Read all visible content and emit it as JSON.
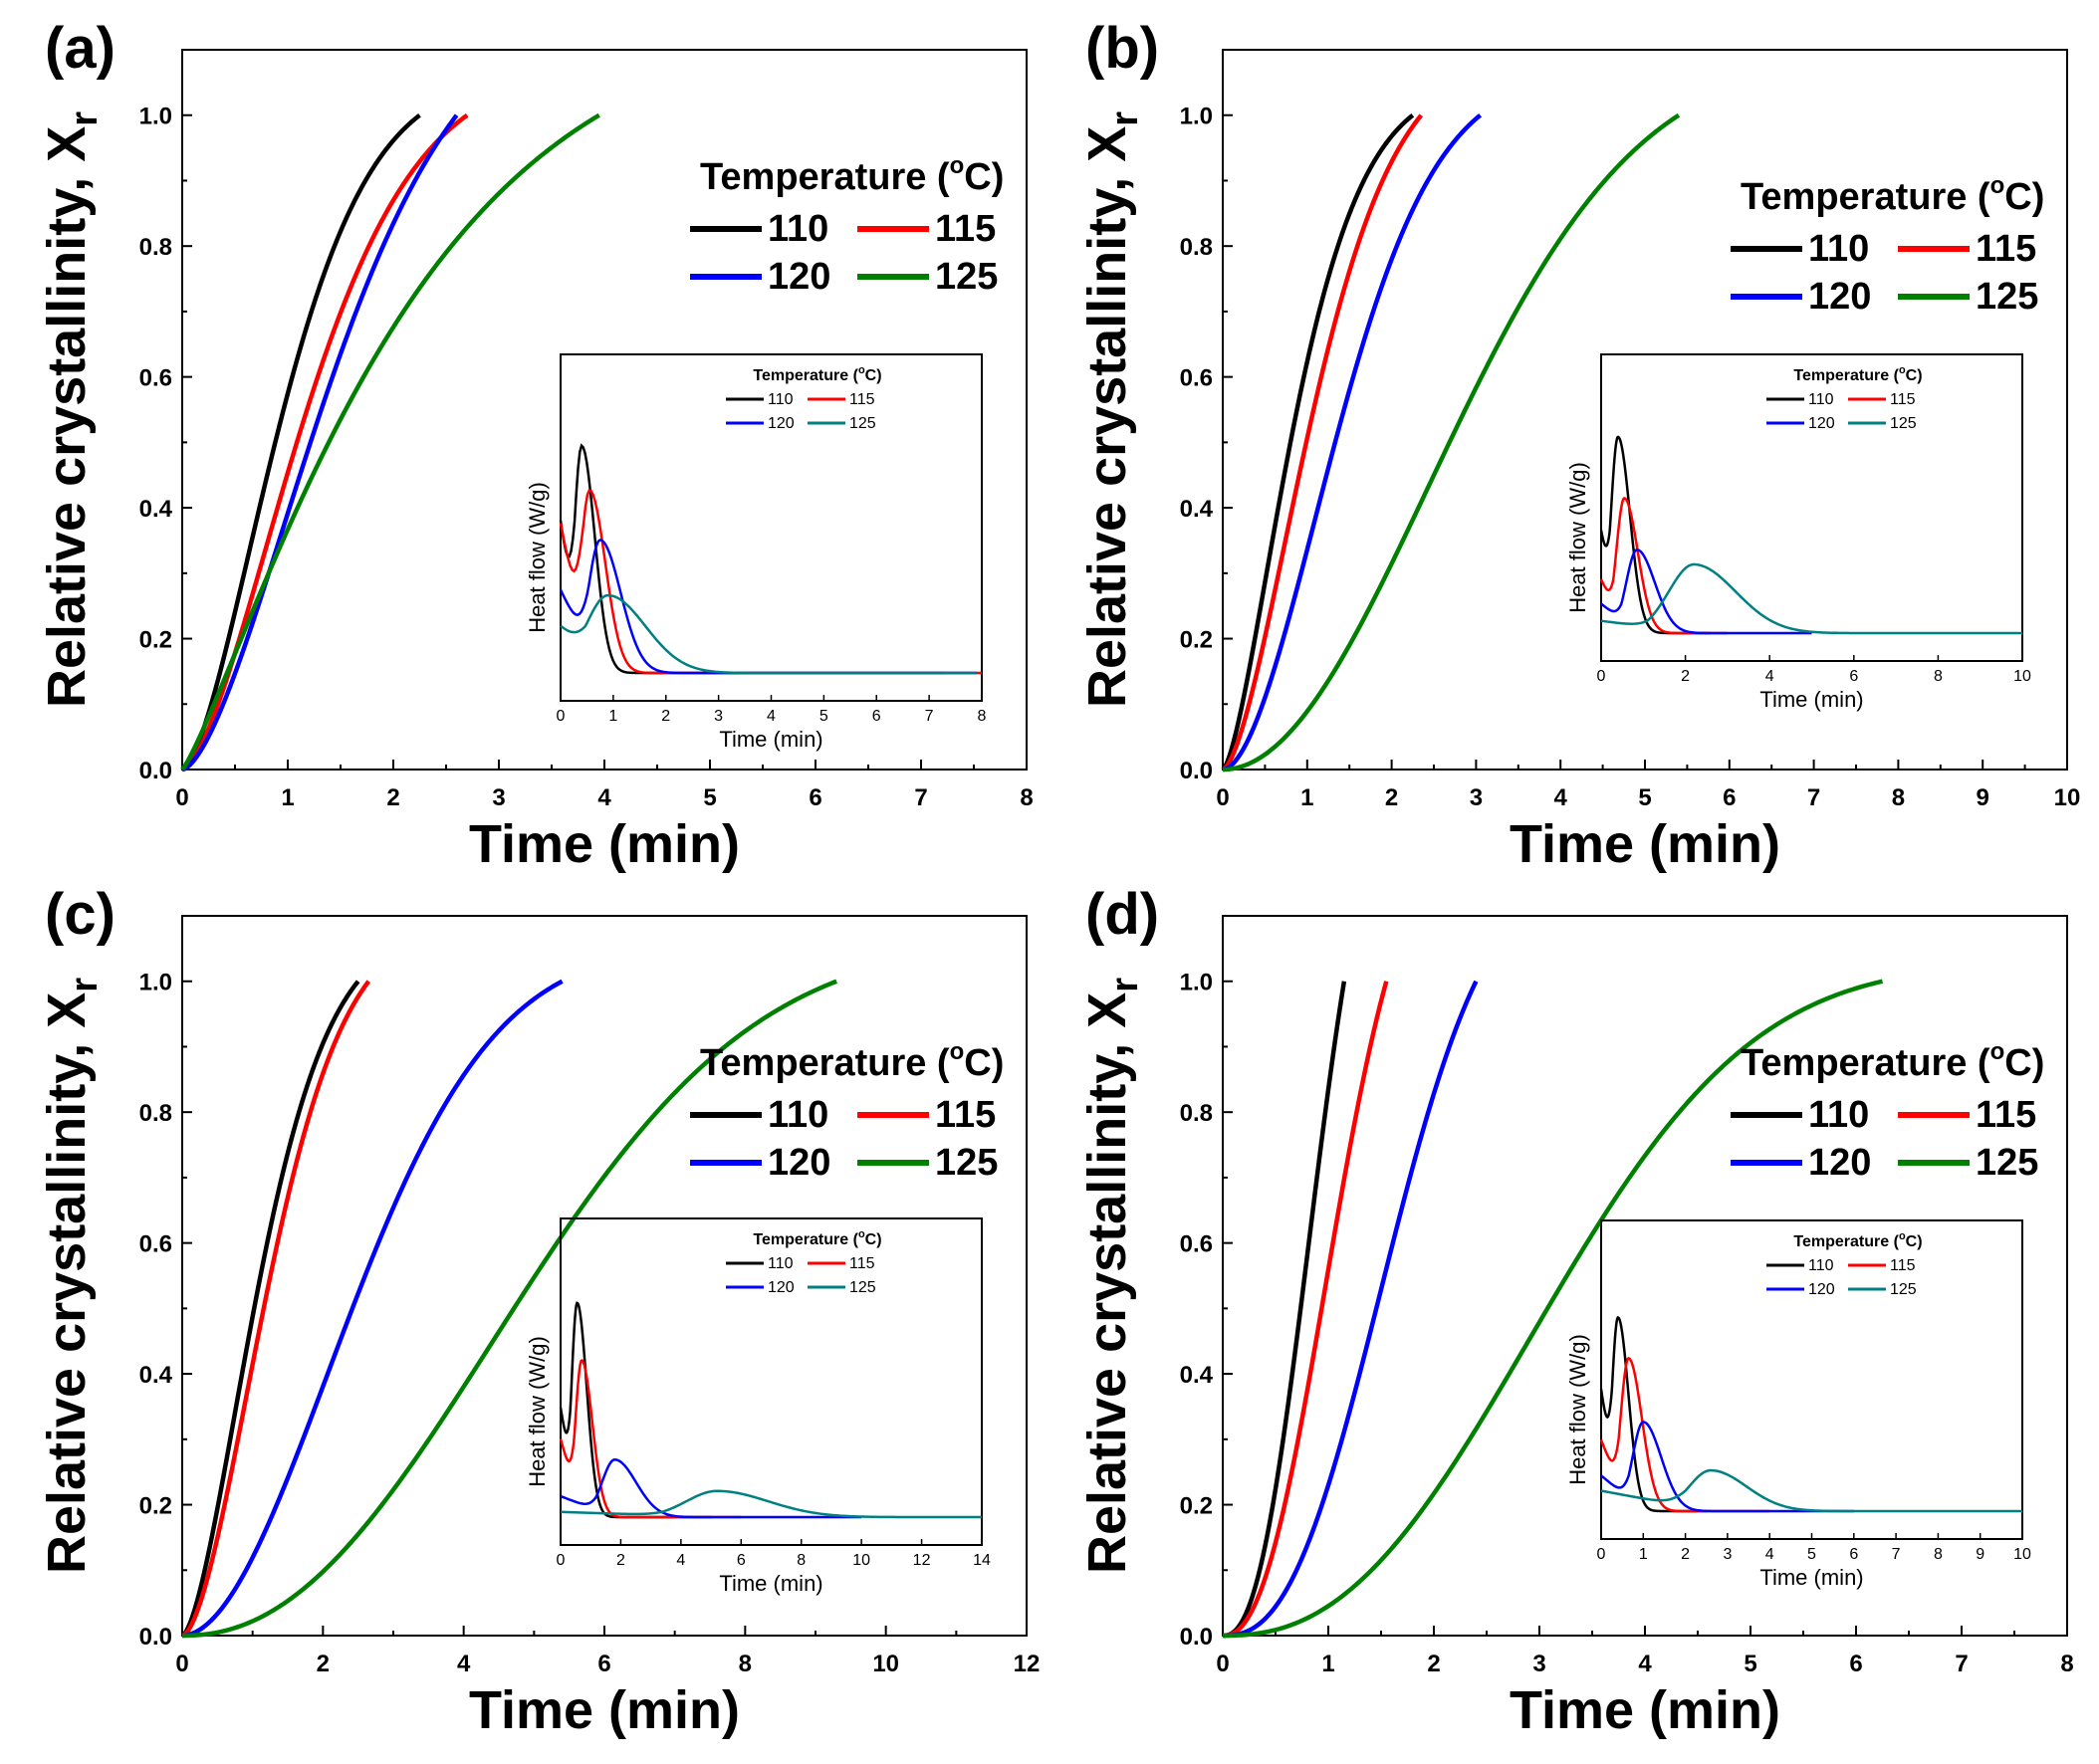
{
  "chart_data": [
    {
      "panel": "(a)",
      "type": "line",
      "xlabel": "Time (min)",
      "ylabel": "Relative crystallinity, X",
      "ylabel_sub": "r",
      "xlim": [
        0,
        8
      ],
      "ylim": [
        0,
        1.1
      ],
      "xticks": [
        "0",
        "1",
        "2",
        "3",
        "4",
        "5",
        "6",
        "7",
        "8"
      ],
      "yticks": [
        "0.0",
        "0.2",
        "0.4",
        "0.6",
        "0.8",
        "1.0"
      ],
      "legend": {
        "title": "Temperature (",
        "title_sup": "o",
        "title_unit": "C)",
        "entries": [
          "110",
          "115",
          "120",
          "125"
        ]
      },
      "series": [
        {
          "name": "110",
          "color": "#000000",
          "avrami": {
            "k": 0.78,
            "n": 1.6,
            "tmax": 2.25
          }
        },
        {
          "name": "115",
          "color": "#ff0000",
          "avrami": {
            "k": 0.55,
            "n": 1.6,
            "tmax": 2.7
          }
        },
        {
          "name": "120",
          "color": "#0000ff",
          "avrami": {
            "k": 0.4,
            "n": 1.6,
            "tmax": 2.6
          }
        },
        {
          "name": "125",
          "color": "#008000",
          "avrami": {
            "k": 0.38,
            "n": 1.2,
            "tmax": 3.95
          }
        }
      ],
      "inset": {
        "xlabel": "Time (min)",
        "ylabel": "Heat flow (W/g)",
        "xlim": [
          0,
          8
        ],
        "xticks": [
          "0",
          "1",
          "2",
          "3",
          "4",
          "5",
          "6",
          "7",
          "8"
        ],
        "legend": {
          "title": "Temperature (",
          "title_sup": "o",
          "title_unit": "C)",
          "entries": [
            "110",
            "115",
            "120",
            "125"
          ]
        },
        "series": [
          {
            "name": "110",
            "color": "#000000",
            "peak": {
              "t": 0.4,
              "h": 0.82,
              "w": 0.35,
              "base": 0.0,
              "start": 0.55,
              "tmax": 7.3
            }
          },
          {
            "name": "115",
            "color": "#ff0000",
            "peak": {
              "t": 0.55,
              "h": 0.66,
              "w": 0.42,
              "base": 0.0,
              "start": 0.54,
              "tmax": 8.0
            }
          },
          {
            "name": "120",
            "color": "#0000ff",
            "peak": {
              "t": 0.75,
              "h": 0.48,
              "w": 0.55,
              "base": 0.0,
              "start": 0.3,
              "tmax": 7.9
            }
          },
          {
            "name": "125",
            "color": "#008080",
            "peak": {
              "t": 0.9,
              "h": 0.28,
              "w": 1.0,
              "base": 0.0,
              "start": 0.17,
              "tmax": 7.9
            }
          }
        ]
      }
    },
    {
      "panel": "(b)",
      "type": "line",
      "xlabel": "Time (min)",
      "ylabel": "Relative crystallinity, X",
      "ylabel_sub": "r",
      "xlim": [
        0,
        10
      ],
      "ylim": [
        0,
        1.1
      ],
      "xticks": [
        "0",
        "1",
        "2",
        "3",
        "4",
        "5",
        "6",
        "7",
        "8",
        "9",
        "10"
      ],
      "yticks": [
        "0.0",
        "0.2",
        "0.4",
        "0.6",
        "0.8",
        "1.0"
      ],
      "legend": {
        "title": "Temperature (",
        "title_sup": "o",
        "title_unit": "C)",
        "entries": [
          "110",
          "115",
          "120",
          "125"
        ]
      },
      "series": [
        {
          "name": "110",
          "color": "#000000",
          "avrami": {
            "k": 0.9,
            "n": 1.5,
            "tmax": 2.25
          }
        },
        {
          "name": "115",
          "color": "#ff0000",
          "avrami": {
            "k": 0.62,
            "n": 1.6,
            "tmax": 2.35
          }
        },
        {
          "name": "120",
          "color": "#0000ff",
          "avrami": {
            "k": 0.38,
            "n": 1.8,
            "tmax": 3.05
          }
        },
        {
          "name": "125",
          "color": "#008000",
          "avrami": {
            "k": 0.085,
            "n": 2.0,
            "tmax": 5.4
          }
        }
      ],
      "inset": {
        "xlabel": "Time (min)",
        "ylabel": "Heat flow (W/g)",
        "xlim": [
          0,
          10
        ],
        "xticks": [
          "0",
          "2",
          "4",
          "6",
          "8",
          "10"
        ],
        "legend": {
          "title": "Temperature (",
          "title_sup": "o",
          "title_unit": "C)",
          "entries": [
            "110",
            "115",
            "120",
            "125"
          ]
        },
        "series": [
          {
            "name": "110",
            "color": "#000000",
            "peak": {
              "t": 0.4,
              "h": 0.8,
              "w": 0.4,
              "base": 0.0,
              "start": 0.42,
              "tmax": 2.6
            }
          },
          {
            "name": "115",
            "color": "#ff0000",
            "peak": {
              "t": 0.55,
              "h": 0.55,
              "w": 0.45,
              "base": 0.0,
              "start": 0.22,
              "tmax": 3.0
            }
          },
          {
            "name": "120",
            "color": "#0000ff",
            "peak": {
              "t": 0.85,
              "h": 0.34,
              "w": 0.6,
              "base": 0.0,
              "start": 0.12,
              "tmax": 5.0
            }
          },
          {
            "name": "125",
            "color": "#008080",
            "peak": {
              "t": 2.2,
              "h": 0.28,
              "w": 1.4,
              "base": 0.0,
              "start": 0.05,
              "tmax": 10.0
            }
          }
        ]
      }
    },
    {
      "panel": "(c)",
      "type": "line",
      "xlabel": "Time (min)",
      "ylabel": "Relative crystallinity, X",
      "ylabel_sub": "r",
      "xlim": [
        0,
        12
      ],
      "ylim": [
        0,
        1.1
      ],
      "xticks": [
        "0",
        "2",
        "4",
        "6",
        "8",
        "10",
        "12"
      ],
      "yticks": [
        "0.0",
        "0.2",
        "0.4",
        "0.6",
        "0.8",
        "1.0"
      ],
      "legend": {
        "title": "Temperature (",
        "title_sup": "o",
        "title_unit": "C)",
        "entries": [
          "110",
          "115",
          "120",
          "125"
        ]
      },
      "series": [
        {
          "name": "110",
          "color": "#000000",
          "avrami": {
            "k": 0.6,
            "n": 1.6,
            "tmax": 2.5
          }
        },
        {
          "name": "115",
          "color": "#ff0000",
          "avrami": {
            "k": 0.48,
            "n": 1.7,
            "tmax": 2.65
          }
        },
        {
          "name": "120",
          "color": "#0000ff",
          "avrami": {
            "k": 0.12,
            "n": 1.9,
            "tmax": 5.4
          }
        },
        {
          "name": "125",
          "color": "#008000",
          "avrami": {
            "k": 0.021,
            "n": 2.2,
            "tmax": 9.3
          }
        }
      ],
      "inset": {
        "xlabel": "Time (min)",
        "ylabel": "Heat flow (W/g)",
        "xlim": [
          0,
          14
        ],
        "xticks": [
          "0",
          "2",
          "4",
          "6",
          "8",
          "10",
          "12",
          "14"
        ],
        "legend": {
          "title": "Temperature (",
          "title_sup": "o",
          "title_unit": "C)",
          "entries": [
            "110",
            "115",
            "120",
            "125"
          ]
        },
        "series": [
          {
            "name": "110",
            "color": "#000000",
            "peak": {
              "t": 0.55,
              "h": 0.82,
              "w": 0.45,
              "base": 0.0,
              "start": 0.42,
              "tmax": 5.0
            }
          },
          {
            "name": "115",
            "color": "#ff0000",
            "peak": {
              "t": 0.7,
              "h": 0.6,
              "w": 0.5,
              "base": 0.0,
              "start": 0.3,
              "tmax": 6.0
            }
          },
          {
            "name": "120",
            "color": "#0000ff",
            "peak": {
              "t": 1.8,
              "h": 0.22,
              "w": 1.0,
              "base": 0.0,
              "start": 0.08,
              "tmax": 10.0
            }
          },
          {
            "name": "125",
            "color": "#008080",
            "peak": {
              "t": 5.2,
              "h": 0.1,
              "w": 2.4,
              "base": 0.0,
              "start": 0.02,
              "tmax": 14.0
            }
          }
        ]
      }
    },
    {
      "panel": "(d)",
      "type": "line",
      "xlabel": "Time (min)",
      "ylabel": "Relative crystallinity, X",
      "ylabel_sub": "r",
      "xlim": [
        0,
        8
      ],
      "ylim": [
        0,
        1.1
      ],
      "xticks": [
        "0",
        "1",
        "2",
        "3",
        "4",
        "5",
        "6",
        "7",
        "8"
      ],
      "yticks": [
        "0.0",
        "0.2",
        "0.4",
        "0.6",
        "0.8",
        "1.0"
      ],
      "legend": {
        "title": "Temperature (",
        "title_sup": "o",
        "title_unit": "C)",
        "entries": [
          "110",
          "115",
          "120",
          "125"
        ]
      },
      "series": [
        {
          "name": "110",
          "color": "#000000",
          "avrami": {
            "k": 0.95,
            "n": 2.4,
            "tmax": 1.15
          }
        },
        {
          "name": "115",
          "color": "#ff0000",
          "avrami": {
            "k": 0.6,
            "n": 2.3,
            "tmax": 1.55
          }
        },
        {
          "name": "120",
          "color": "#0000ff",
          "avrami": {
            "k": 0.22,
            "n": 2.5,
            "tmax": 2.4
          }
        },
        {
          "name": "125",
          "color": "#008000",
          "avrami": {
            "k": 0.045,
            "n": 2.4,
            "tmax": 6.25
          }
        }
      ],
      "inset": {
        "xlabel": "Time (min)",
        "ylabel": "Heat flow (W/g)",
        "xlim": [
          0,
          10
        ],
        "xticks": [
          "0",
          "1",
          "2",
          "3",
          "4",
          "5",
          "6",
          "7",
          "8",
          "9",
          "10"
        ],
        "legend": {
          "title": "Temperature (",
          "title_sup": "o",
          "title_unit": "C)",
          "entries": [
            "110",
            "115",
            "120",
            "125"
          ]
        },
        "series": [
          {
            "name": "110",
            "color": "#000000",
            "peak": {
              "t": 0.4,
              "h": 0.76,
              "w": 0.35,
              "base": 0.0,
              "start": 0.48,
              "tmax": 2.5
            }
          },
          {
            "name": "115",
            "color": "#ff0000",
            "peak": {
              "t": 0.65,
              "h": 0.6,
              "w": 0.45,
              "base": 0.0,
              "start": 0.28,
              "tmax": 4.0
            }
          },
          {
            "name": "120",
            "color": "#0000ff",
            "peak": {
              "t": 1.0,
              "h": 0.35,
              "w": 0.6,
              "base": 0.0,
              "start": 0.14,
              "tmax": 6.0
            }
          },
          {
            "name": "125",
            "color": "#008080",
            "peak": {
              "t": 2.6,
              "h": 0.16,
              "w": 1.2,
              "base": 0.0,
              "start": 0.08,
              "tmax": 10.0
            }
          }
        ]
      }
    }
  ]
}
